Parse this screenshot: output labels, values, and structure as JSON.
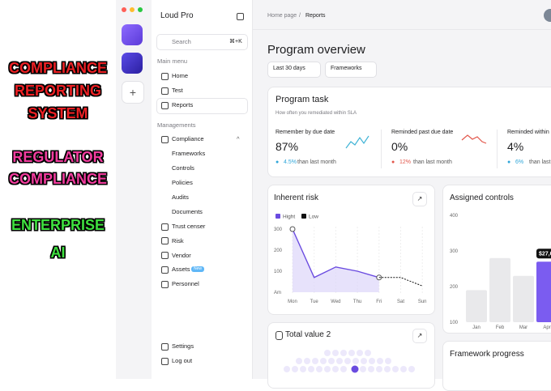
{
  "promo": {
    "lines": [
      "COMPLIANCE",
      "REPORTING",
      "SYSTEM"
    ],
    "lines2": [
      "REGULATOR",
      "COMPLIANCE"
    ],
    "lines3": [
      "ENTERPRISE",
      "AI"
    ]
  },
  "sidebar": {
    "workspace": "Loud Pro",
    "search": "Search",
    "shortcut": "⌘+K",
    "main_menu": {
      "title": "Main menu",
      "items": [
        "Home",
        "Test",
        "Reports"
      ]
    },
    "managements": {
      "title": "Managements",
      "compliance": "Compliance",
      "compliance_items": [
        "Frameworks",
        "Controls",
        "Policies",
        "Audits",
        "Documents"
      ],
      "items": [
        "Trust censer",
        "Risk",
        "Vendor",
        "Assets",
        "Personnel"
      ]
    },
    "badge": "New",
    "footer": [
      "Settings",
      "Log out"
    ]
  },
  "breadcrumb": {
    "items": [
      "Home page",
      "Reports"
    ],
    "separator": "/"
  },
  "page_title": "Program overview",
  "filters": [
    "Last 30 days",
    "Frameworks"
  ],
  "program_task": {
    "title": "Program task",
    "subtitle": "How often you remediated within SLA",
    "metrics": [
      {
        "label": "Remember by due date",
        "value": "87%",
        "change": "4.5%",
        "change_text": "than last month"
      },
      {
        "label": "Reminded past due date",
        "value": "0%",
        "change": "12%",
        "change_text": "than last month"
      },
      {
        "label": "Reminded within",
        "value": "4%",
        "change": "6%",
        "change_text": "than last"
      }
    ]
  },
  "inherent_risk": {
    "type": "line",
    "title": "Inherent risk",
    "categories": [
      "Mon",
      "Tue",
      "Wed",
      "Thu",
      "Fri",
      "Sat",
      "Sun"
    ],
    "series": [
      {
        "name": "Hight",
        "color": "#6a4be0",
        "values": [
          300,
          70,
          120,
          100,
          70,
          null,
          null
        ]
      },
      {
        "name": "Low",
        "color": "#111111",
        "values": [
          null,
          null,
          null,
          null,
          70,
          70,
          30
        ]
      }
    ],
    "ylim": [
      0,
      300
    ],
    "yticks": [
      {
        "value": 0,
        "label": "Am"
      },
      100,
      200,
      300
    ]
  },
  "assigned_controls": {
    "type": "bar",
    "title": "Assigned controls",
    "categories": [
      "Jan",
      "Feb",
      "Mar",
      "Apr"
    ],
    "values": [
      190,
      280,
      230,
      270
    ],
    "colors": [
      "#e9e9eb",
      "#e9e9eb",
      "#e9e9eb",
      "#7b5cf0"
    ],
    "ylim": [
      100,
      400
    ],
    "yticks": [
      400,
      300,
      200,
      100
    ],
    "badge": "$27,6"
  },
  "total_value": {
    "title": "Total value 2"
  },
  "framework_progress": {
    "title": "Framework progress"
  }
}
